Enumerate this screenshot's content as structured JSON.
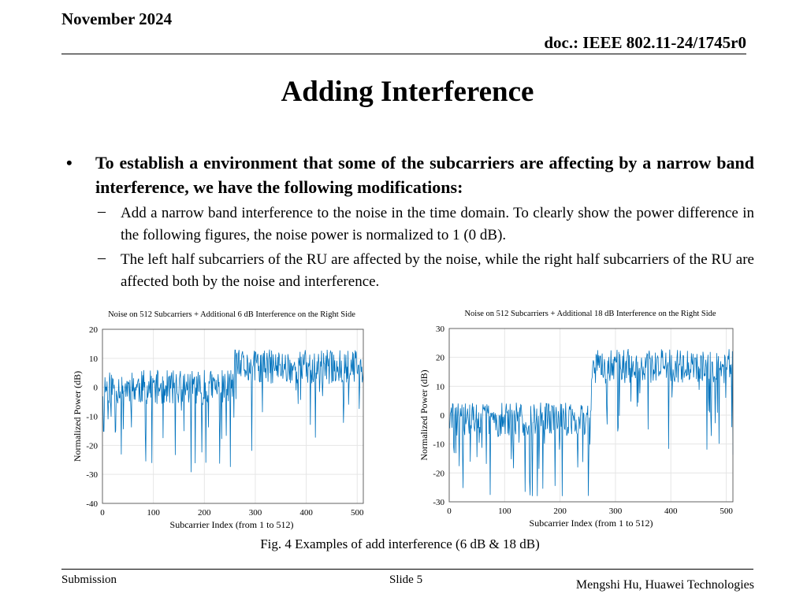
{
  "header": {
    "date": "November 2024",
    "doc": "doc.: IEEE 802.11-24/1745r0"
  },
  "slide_title": "Adding Interference",
  "bullet_symbol": "•",
  "main_bullet": "To establish a environment that some of the subcarriers are affecting by a narrow band interference, we have the following modifications:",
  "sub_bullets": [
    {
      "dash": "–",
      "text": "Add a narrow band interference to the noise in the time domain. To clearly show the power difference in the following figures, the noise power is normalized to 1 (0 dB)."
    },
    {
      "dash": "–",
      "text": "The left half subcarriers of the RU are affected by the noise, while the right half subcarriers of the RU are affected both by the noise and interference."
    }
  ],
  "chart_data": [
    {
      "type": "line",
      "title": "Noise on 512 Subcarriers + Additional 6 dB Interference on the Right Side",
      "xlabel": "Subcarrier Index (from 1 to 512)",
      "ylabel": "Normalized Power (dB)",
      "xlim": [
        0,
        512
      ],
      "ylim": [
        -40,
        20
      ],
      "xticks": [
        "0",
        "100",
        "200",
        "300",
        "400",
        "500"
      ],
      "yticks": [
        "20",
        "10",
        "0",
        "-10",
        "-20",
        "-30",
        "-40"
      ],
      "grid": true,
      "series_color": "#0072BD"
    },
    {
      "type": "line",
      "title": "Noise on 512 Subcarriers + Additional 18 dB Interference on the Right Side",
      "xlabel": "Subcarrier Index (from 1 to 512)",
      "ylabel": "Normalized Power (dB)",
      "xlim": [
        0,
        512
      ],
      "ylim": [
        -30,
        30
      ],
      "xticks": [
        "0",
        "100",
        "200",
        "300",
        "400",
        "500"
      ],
      "yticks": [
        "30",
        "20",
        "10",
        "0",
        "-10",
        "-20",
        "-30"
      ],
      "grid": true,
      "series_color": "#0072BD"
    }
  ],
  "caption": "Fig. 4 Examples of add interference (6 dB & 18 dB)",
  "footer": {
    "left": "Submission",
    "center": "Slide 5",
    "right": "Mengshi Hu, Huawei Technologies"
  }
}
